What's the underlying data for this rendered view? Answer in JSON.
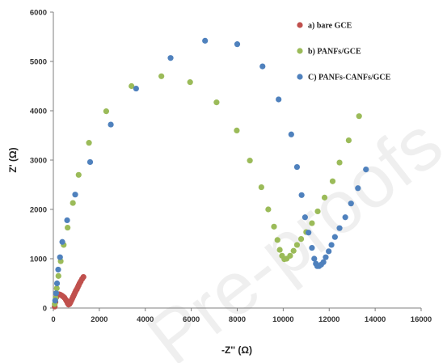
{
  "chart_data": {
    "type": "scatter",
    "title": "",
    "xlabel": "-Z'' (Ω)",
    "ylabel": "Z' (Ω)",
    "xlim": [
      0,
      16000
    ],
    "ylim": [
      0,
      6000
    ],
    "xticks": [
      "0",
      "2000",
      "4000",
      "6000",
      "8000",
      "10000",
      "12000",
      "14000",
      "16000"
    ],
    "yticks": [
      "0",
      "1000",
      "2000",
      "3000",
      "4000",
      "5000",
      "6000"
    ],
    "grid": false,
    "legend_position": "top-right",
    "watermark": "Pre-proofs",
    "series": [
      {
        "name": "a) bare GCE",
        "color": "#c0504d",
        "x": [
          60,
          90,
          130,
          180,
          240,
          300,
          360,
          420,
          480,
          540,
          580,
          620,
          660,
          700,
          740,
          780,
          820,
          860,
          900,
          940,
          980,
          1020,
          1060,
          1100,
          1140,
          1190,
          1250,
          1310
        ],
        "y": [
          30,
          120,
          220,
          270,
          280,
          270,
          255,
          235,
          210,
          170,
          140,
          100,
          70,
          80,
          110,
          150,
          190,
          230,
          270,
          310,
          350,
          380,
          420,
          460,
          500,
          540,
          590,
          630
        ]
      },
      {
        "name": "b) PANFs/GCE",
        "color": "#9bbb59",
        "x": [
          60,
          100,
          150,
          220,
          320,
          450,
          620,
          850,
          1100,
          1550,
          2300,
          3400,
          4700,
          5950,
          7100,
          7980,
          8550,
          9050,
          9350,
          9600,
          9750,
          9850,
          9950,
          10050,
          10150,
          10300,
          10450,
          10600,
          10780,
          11000,
          11250,
          11500,
          11800,
          12150,
          12450,
          12850,
          13300
        ],
        "y": [
          80,
          200,
          400,
          650,
          950,
          1280,
          1630,
          2130,
          2700,
          3350,
          3990,
          4500,
          4700,
          4580,
          4170,
          3600,
          2990,
          2450,
          2000,
          1650,
          1380,
          1180,
          1060,
          990,
          1000,
          1060,
          1160,
          1280,
          1400,
          1540,
          1720,
          1960,
          2240,
          2570,
          2950,
          3400,
          3890
        ]
      },
      {
        "name": "C) PANFs-CANFs/GCE",
        "color": "#4f81bd",
        "x": [
          80,
          120,
          160,
          210,
          290,
          390,
          600,
          950,
          1600,
          2500,
          3600,
          5100,
          6600,
          8000,
          9100,
          9800,
          10350,
          10600,
          10800,
          10950,
          11100,
          11250,
          11350,
          11420,
          11480,
          11560,
          11650,
          11750,
          11850,
          11980,
          12100,
          12250,
          12450,
          12700,
          12950,
          13250,
          13600
        ],
        "y": [
          150,
          300,
          500,
          780,
          1030,
          1340,
          1780,
          2300,
          2960,
          3720,
          4450,
          5070,
          5420,
          5350,
          4900,
          4230,
          3520,
          2860,
          2290,
          1840,
          1530,
          1220,
          1000,
          900,
          850,
          850,
          880,
          930,
          1030,
          1150,
          1280,
          1440,
          1620,
          1840,
          2120,
          2430,
          2810
        ]
      }
    ]
  }
}
